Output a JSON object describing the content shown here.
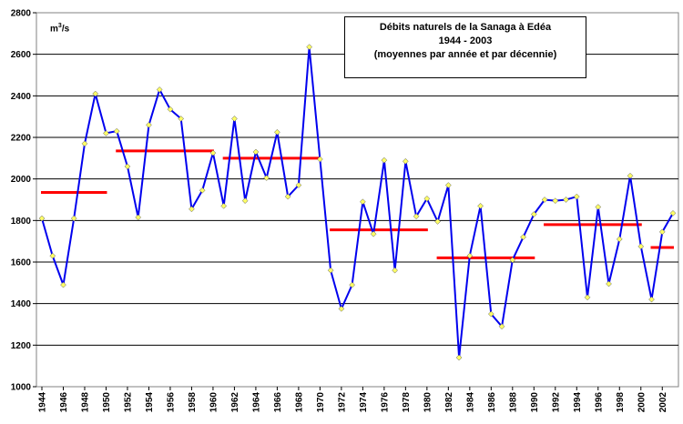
{
  "chart_data": {
    "type": "line",
    "title_lines": [
      "Débits naturels de la Sanaga à Edéa",
      "1944 - 2003",
      "(moyennes par année et par décennie)"
    ],
    "unit_label": {
      "base": "m",
      "sup": "3",
      "tail": "/s"
    },
    "ylim": [
      1000,
      2800
    ],
    "yticks": [
      1000,
      1200,
      1400,
      1600,
      1800,
      2000,
      2200,
      2400,
      2600,
      2800
    ],
    "xlim": [
      1944,
      2003
    ],
    "xticks": [
      1944,
      1946,
      1948,
      1950,
      1952,
      1954,
      1956,
      1958,
      1960,
      1962,
      1964,
      1966,
      1968,
      1970,
      1972,
      1974,
      1976,
      1978,
      1980,
      1982,
      1984,
      1986,
      1988,
      1990,
      1992,
      1994,
      1996,
      1998,
      2000,
      2002
    ],
    "grid": "horizontal",
    "series": [
      {
        "style": "line-with-markers",
        "color": "#0000ee",
        "marker_color": "#ffff66",
        "x": [
          1944,
          1945,
          1946,
          1947,
          1948,
          1949,
          1950,
          1951,
          1952,
          1953,
          1954,
          1955,
          1956,
          1957,
          1958,
          1959,
          1960,
          1961,
          1962,
          1963,
          1964,
          1965,
          1966,
          1967,
          1968,
          1969,
          1970,
          1971,
          1972,
          1973,
          1974,
          1975,
          1976,
          1977,
          1978,
          1979,
          1980,
          1981,
          1982,
          1983,
          1984,
          1985,
          1986,
          1987,
          1988,
          1989,
          1990,
          1991,
          1992,
          1993,
          1994,
          1995,
          1996,
          1997,
          1998,
          1999,
          2000,
          2001,
          2002,
          2003
        ],
        "y": [
          1810,
          1630,
          1490,
          1810,
          2170,
          2410,
          2220,
          2230,
          2060,
          1815,
          2260,
          2430,
          2335,
          2290,
          1855,
          1945,
          2125,
          1870,
          2290,
          1895,
          2130,
          2005,
          2225,
          1915,
          1970,
          2635,
          2095,
          1560,
          1375,
          1490,
          1890,
          1735,
          2090,
          1560,
          2085,
          1820,
          1905,
          1795,
          1970,
          1140,
          1630,
          1870,
          1350,
          1290,
          1610,
          1720,
          1830,
          1900,
          1895,
          1900,
          1915,
          1430,
          1865,
          1495,
          1710,
          2015,
          1675,
          1420,
          1745,
          1835
        ]
      }
    ],
    "decade_means": {
      "color": "#ff0000",
      "segments": [
        {
          "x_start": 1944,
          "x_end": 1950,
          "y": 1935
        },
        {
          "x_start": 1951,
          "x_end": 1960,
          "y": 2135
        },
        {
          "x_start": 1961,
          "x_end": 1970,
          "y": 2100
        },
        {
          "x_start": 1971,
          "x_end": 1980,
          "y": 1755
        },
        {
          "x_start": 1981,
          "x_end": 1990,
          "y": 1620
        },
        {
          "x_start": 1991,
          "x_end": 2000,
          "y": 1780
        },
        {
          "x_start": 2001,
          "x_end": 2003,
          "y": 1670
        }
      ]
    }
  }
}
